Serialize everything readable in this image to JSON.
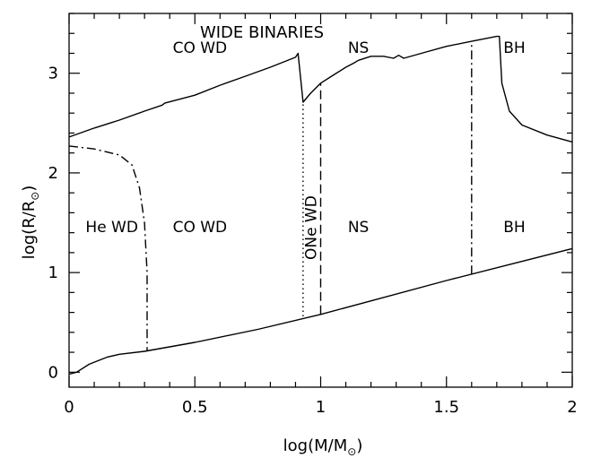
{
  "chart_data": {
    "type": "line",
    "title": "WIDE BINARIES",
    "xlabel": "log(M/M",
    "ylabel": "log(R/R",
    "label_subscript": "⊙",
    "xlim": [
      0,
      2
    ],
    "ylim": [
      -0.15,
      3.6
    ],
    "xticks": [
      0,
      0.5,
      1,
      1.5,
      2
    ],
    "xtick_labels": [
      "0",
      "0.5",
      "1",
      "1.5",
      "2"
    ],
    "yticks": [
      0,
      1,
      2,
      3
    ],
    "ytick_labels": [
      "0",
      "1",
      "2",
      "3"
    ],
    "series": [
      {
        "name": "upper-boundary",
        "style": "solid",
        "x": [
          0,
          0.1,
          0.2,
          0.3,
          0.37,
          0.38,
          0.5,
          0.6,
          0.7,
          0.8,
          0.9,
          0.91,
          0.93,
          0.96,
          1.0,
          1.05,
          1.1,
          1.13,
          1.15,
          1.2,
          1.25,
          1.29,
          1.31,
          1.33,
          1.4,
          1.5,
          1.6,
          1.7,
          1.71,
          1.72,
          1.75,
          1.8,
          1.9,
          2.0
        ],
        "y": [
          2.36,
          2.45,
          2.53,
          2.62,
          2.68,
          2.7,
          2.78,
          2.88,
          2.97,
          3.06,
          3.16,
          3.2,
          2.71,
          2.8,
          2.9,
          2.98,
          3.06,
          3.1,
          3.13,
          3.17,
          3.17,
          3.15,
          3.18,
          3.15,
          3.2,
          3.27,
          3.32,
          3.37,
          3.37,
          2.9,
          2.62,
          2.48,
          2.38,
          2.31
        ]
      },
      {
        "name": "lower-boundary",
        "style": "solid",
        "x": [
          0,
          0.03,
          0.08,
          0.15,
          0.2,
          0.3,
          0.5,
          0.75,
          1.0,
          1.25,
          1.5,
          1.75,
          2.0
        ],
        "y": [
          -0.02,
          0.0,
          0.08,
          0.15,
          0.18,
          0.21,
          0.3,
          0.43,
          0.58,
          0.75,
          0.92,
          1.08,
          1.24
        ]
      },
      {
        "name": "He-WD-limit",
        "style": "dashdot",
        "x": [
          0,
          0.1,
          0.2,
          0.25,
          0.28,
          0.3,
          0.31,
          0.31
        ],
        "y": [
          2.27,
          2.24,
          2.18,
          2.08,
          1.85,
          1.5,
          1.0,
          0.21
        ]
      },
      {
        "name": "ONe-WD-boundary",
        "style": "dotted",
        "x": [
          0.93,
          0.93
        ],
        "y": [
          0.56,
          2.7
        ]
      },
      {
        "name": "NS-boundary",
        "style": "dashed",
        "x": [
          1.0,
          1.0
        ],
        "y": [
          0.58,
          2.9
        ]
      },
      {
        "name": "BH-boundary",
        "style": "dashdot",
        "x": [
          1.6,
          1.6
        ],
        "y": [
          0.98,
          3.32
        ]
      }
    ],
    "annotations": [
      {
        "text": "CO WD",
        "x": 0.52,
        "y": 3.25,
        "rotate": 0
      },
      {
        "text": "NS",
        "x": 1.15,
        "y": 3.25,
        "rotate": 0
      },
      {
        "text": "BH",
        "x": 1.77,
        "y": 3.25,
        "rotate": 0
      },
      {
        "text": "He WD",
        "x": 0.17,
        "y": 1.45,
        "rotate": 0
      },
      {
        "text": "CO WD",
        "x": 0.52,
        "y": 1.45,
        "rotate": 0
      },
      {
        "text": "ONe WD",
        "x": 0.965,
        "y": 1.45,
        "rotate": -90
      },
      {
        "text": "NS",
        "x": 1.15,
        "y": 1.45,
        "rotate": 0
      },
      {
        "text": "BH",
        "x": 1.77,
        "y": 1.45,
        "rotate": 0
      }
    ]
  }
}
